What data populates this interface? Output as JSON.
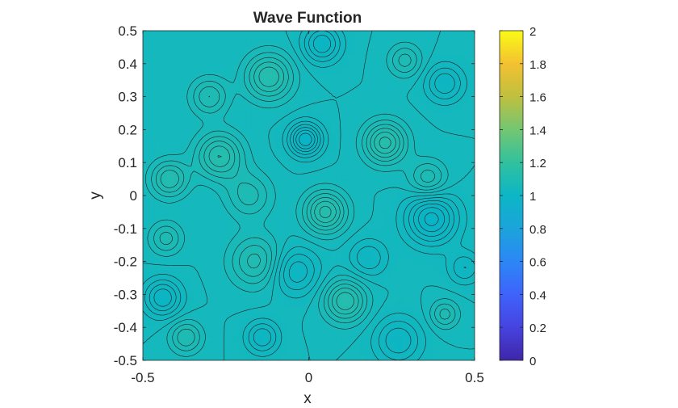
{
  "chart_data": {
    "type": "contour",
    "title": "Wave Function",
    "xlabel": "x",
    "ylabel": "y",
    "xlim": [
      -0.5,
      0.5
    ],
    "ylim": [
      -0.5,
      0.5
    ],
    "x_ticks": [
      "-0.5",
      "0",
      "0.5"
    ],
    "x_tick_values": [
      -0.5,
      0,
      0.5
    ],
    "y_ticks": [
      "-0.5",
      "-0.4",
      "-0.3",
      "-0.2",
      "-0.1",
      "0",
      "0.1",
      "0.2",
      "0.3",
      "0.4",
      "0.5"
    ],
    "y_tick_values": [
      -0.5,
      -0.4,
      -0.3,
      -0.2,
      -0.1,
      0,
      0.1,
      0.2,
      0.3,
      0.4,
      0.5
    ],
    "colorbar": {
      "colormap": "parula",
      "clim": [
        0,
        2
      ],
      "ticks": [
        "0",
        "0.2",
        "0.4",
        "0.6",
        "0.8",
        "1",
        "1.2",
        "1.4",
        "1.6",
        "1.8",
        "2"
      ],
      "tick_values": [
        0,
        0.2,
        0.4,
        0.6,
        0.8,
        1,
        1.2,
        1.4,
        1.6,
        1.8,
        2
      ],
      "colors": [
        "#3e26a8",
        "#4743e0",
        "#3e63fb",
        "#2c87f6",
        "#1ba4db",
        "#0cb6c5",
        "#31c19e",
        "#73c672",
        "#bfc03f",
        "#f3c131",
        "#f9fb15"
      ]
    },
    "field_range_approx": [
      0.85,
      1.15
    ],
    "field_colors": {
      "low": "#07b3c8",
      "mid": "#14b8bd",
      "high": "#2abea9"
    },
    "contour_color": "#1f1f1f",
    "components": [
      {
        "x": -0.12,
        "y": 0.36,
        "a": 0.12,
        "s": 0.05
      },
      {
        "x": -0.01,
        "y": 0.17,
        "a": -0.14,
        "s": 0.035
      },
      {
        "x": 0.23,
        "y": 0.16,
        "a": 0.13,
        "s": 0.045
      },
      {
        "x": -0.27,
        "y": 0.12,
        "a": 0.12,
        "s": 0.05
      },
      {
        "x": 0.37,
        "y": -0.07,
        "a": -0.13,
        "s": 0.055
      },
      {
        "x": 0.05,
        "y": -0.05,
        "a": 0.13,
        "s": 0.045
      },
      {
        "x": 0.11,
        "y": -0.32,
        "a": 0.12,
        "s": 0.045
      },
      {
        "x": -0.16,
        "y": -0.2,
        "a": 0.09,
        "s": 0.055
      },
      {
        "x": -0.44,
        "y": -0.31,
        "a": -0.1,
        "s": 0.04
      },
      {
        "x": 0.04,
        "y": 0.46,
        "a": -0.1,
        "s": 0.04
      },
      {
        "x": -0.42,
        "y": 0.05,
        "a": 0.1,
        "s": 0.04
      },
      {
        "x": -0.04,
        "y": -0.23,
        "a": -0.08,
        "s": 0.05
      },
      {
        "x": 0.27,
        "y": -0.44,
        "a": -0.08,
        "s": 0.05
      },
      {
        "x": 0.41,
        "y": 0.34,
        "a": -0.08,
        "s": 0.04
      },
      {
        "x": -0.37,
        "y": -0.43,
        "a": 0.08,
        "s": 0.035
      },
      {
        "x": -0.18,
        "y": 0.0,
        "a": 0.07,
        "s": 0.05
      },
      {
        "x": -0.3,
        "y": 0.3,
        "a": 0.08,
        "s": 0.04
      },
      {
        "x": 0.36,
        "y": 0.05,
        "a": 0.08,
        "s": 0.04
      },
      {
        "x": -0.14,
        "y": -0.43,
        "a": -0.08,
        "s": 0.035
      },
      {
        "x": 0.29,
        "y": 0.41,
        "a": 0.07,
        "s": 0.035
      },
      {
        "x": 0.41,
        "y": -0.36,
        "a": 0.07,
        "s": 0.03
      },
      {
        "x": 0.47,
        "y": -0.22,
        "a": -0.06,
        "s": 0.035
      },
      {
        "x": 0.18,
        "y": -0.19,
        "a": -0.06,
        "s": 0.04
      },
      {
        "x": -0.43,
        "y": -0.13,
        "a": 0.07,
        "s": 0.035
      }
    ]
  }
}
